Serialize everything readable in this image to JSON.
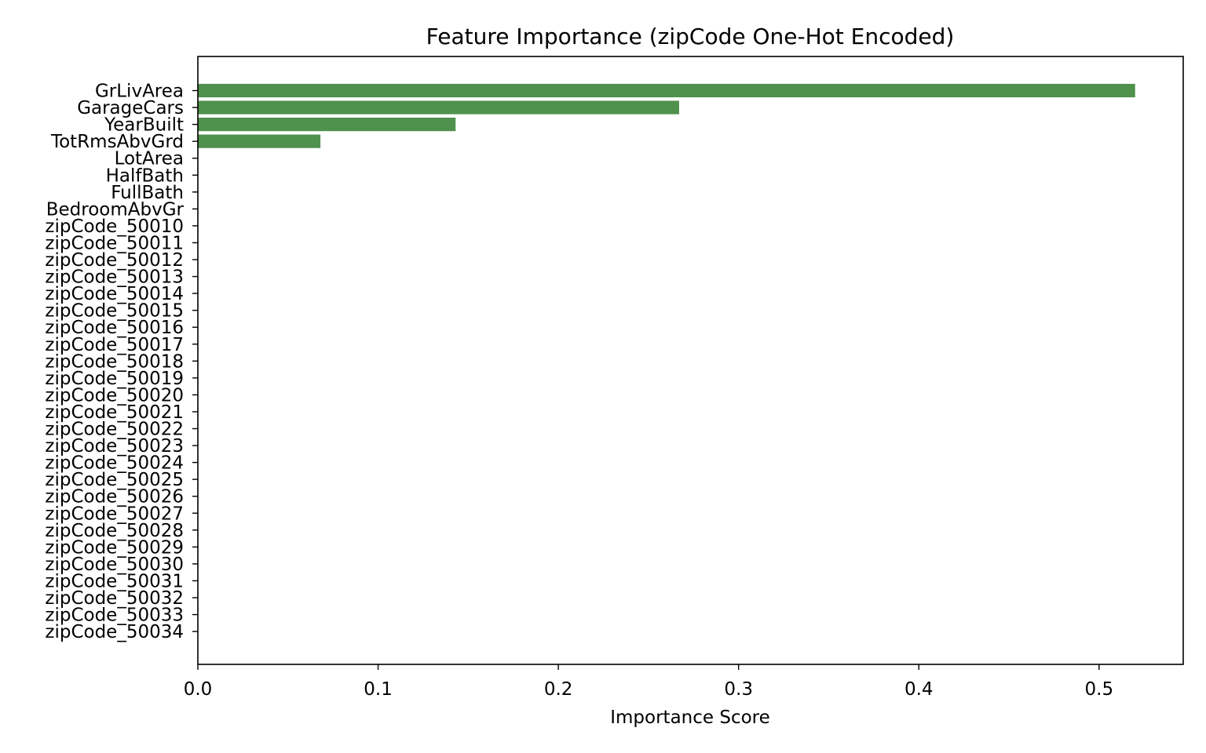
{
  "chart_data": {
    "type": "bar",
    "orientation": "horizontal",
    "title": "Feature Importance (zipCode One-Hot Encoded)",
    "xlabel": "Importance Score",
    "ylabel": "",
    "xlim": [
      0,
      0.5467
    ],
    "xticks": [
      0.0,
      0.1,
      0.2,
      0.3,
      0.4,
      0.5
    ],
    "xtick_labels": [
      "0.0",
      "0.1",
      "0.2",
      "0.3",
      "0.4",
      "0.5"
    ],
    "grid": false,
    "legend": false,
    "bar_color": "#4f914d",
    "categories": [
      "GrLivArea",
      "GarageCars",
      "YearBuilt",
      "TotRmsAbvGrd",
      "LotArea",
      "HalfBath",
      "FullBath",
      "BedroomAbvGr",
      "zipCode_50010",
      "zipCode_50011",
      "zipCode_50012",
      "zipCode_50013",
      "zipCode_50014",
      "zipCode_50015",
      "zipCode_50016",
      "zipCode_50017",
      "zipCode_50018",
      "zipCode_50019",
      "zipCode_50020",
      "zipCode_50021",
      "zipCode_50022",
      "zipCode_50023",
      "zipCode_50024",
      "zipCode_50025",
      "zipCode_50026",
      "zipCode_50027",
      "zipCode_50028",
      "zipCode_50029",
      "zipCode_50030",
      "zipCode_50031",
      "zipCode_50032",
      "zipCode_50033",
      "zipCode_50034"
    ],
    "values": [
      0.52,
      0.267,
      0.143,
      0.068,
      0,
      0,
      0,
      0,
      0,
      0,
      0,
      0,
      0,
      0,
      0,
      0,
      0,
      0,
      0,
      0,
      0,
      0,
      0,
      0,
      0,
      0,
      0,
      0,
      0,
      0,
      0,
      0,
      0
    ]
  }
}
